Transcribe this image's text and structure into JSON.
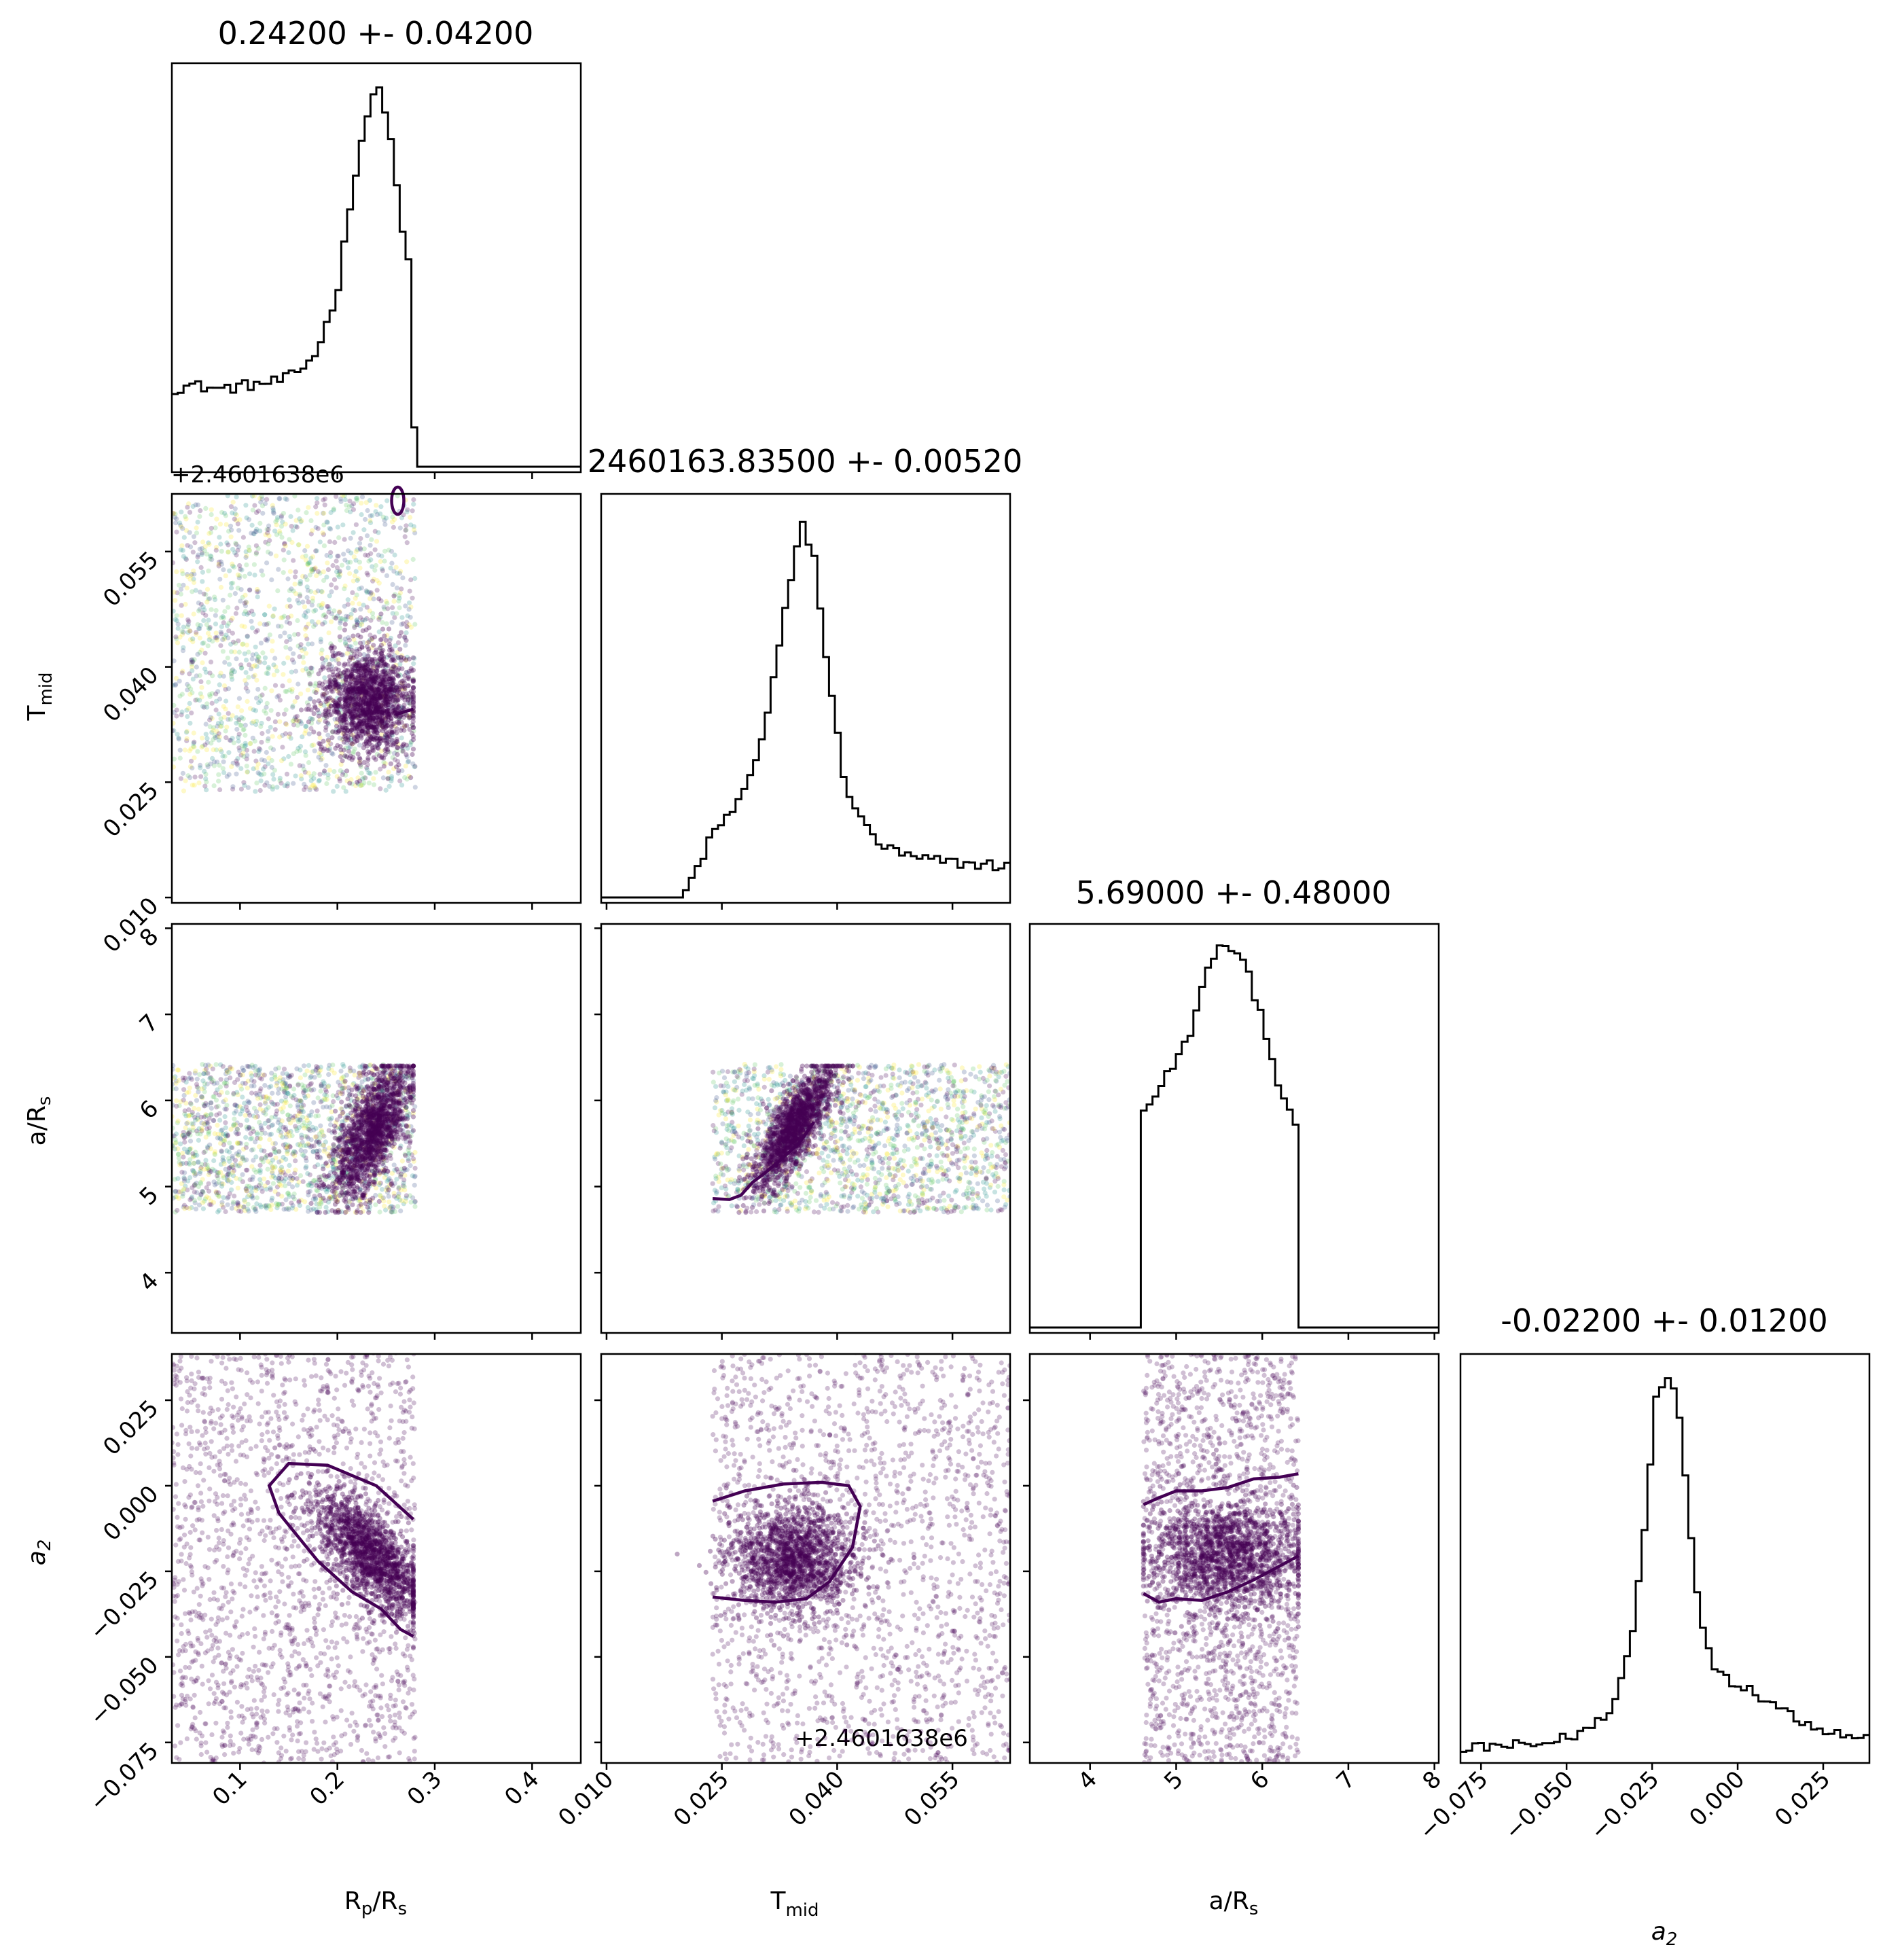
{
  "chart_data": {
    "type": "corner",
    "parameters": [
      {
        "key": "rp",
        "label_main": "R",
        "label_sub": "p",
        "label_tail": "/R",
        "label_tail_sub": "s",
        "title": "0.24200 +- 0.04200",
        "range": [
          0.03,
          0.45
        ],
        "ticks": [
          0.1,
          0.2,
          0.3,
          0.4
        ],
        "tick_labels": [
          "0.1",
          "0.2",
          "0.3",
          "0.4"
        ]
      },
      {
        "key": "tmid",
        "label_main": "T",
        "label_sub": "mid",
        "offset_text": "+2.4601638e6",
        "title": "2460163.83500 +- 0.00520",
        "range": [
          0.0093,
          0.0625
        ],
        "ticks": [
          0.01,
          0.025,
          0.04,
          0.055
        ],
        "tick_labels": [
          "0.010",
          "0.025",
          "0.040",
          "0.055"
        ]
      },
      {
        "key": "a",
        "label_main": "a/R",
        "label_sub": "s",
        "title": "5.69000 +- 0.48000",
        "range": [
          3.3,
          8.05
        ],
        "ticks": [
          4,
          5,
          6,
          7,
          8
        ],
        "tick_labels": [
          "4",
          "5",
          "6",
          "7",
          "8"
        ]
      },
      {
        "key": "a2",
        "label_main": "a",
        "label_sub": "2",
        "title": "-0.02200 +- 0.01200",
        "range": [
          -0.081,
          0.0385
        ],
        "ticks": [
          -0.075,
          -0.05,
          -0.025,
          0.0,
          0.025
        ],
        "tick_labels": [
          "−0.075",
          "−0.050",
          "−0.025",
          "0.000",
          "0.025"
        ]
      }
    ],
    "histograms": {
      "rp": {
        "x": [
          0.03,
          0.05,
          0.08,
          0.11,
          0.14,
          0.16,
          0.18,
          0.2,
          0.21,
          0.22,
          0.23,
          0.24,
          0.25,
          0.26,
          0.27,
          0.275,
          0.28,
          0.29,
          0.45
        ],
        "y": [
          0.2,
          0.21,
          0.2,
          0.21,
          0.22,
          0.24,
          0.3,
          0.45,
          0.62,
          0.78,
          0.9,
          0.98,
          0.92,
          0.75,
          0.55,
          0.5,
          0.0,
          0.0,
          0.0
        ]
      },
      "tmid": {
        "x": [
          0.0093,
          0.02,
          0.0238,
          0.025,
          0.027,
          0.029,
          0.031,
          0.0325,
          0.034,
          0.0355,
          0.037,
          0.039,
          0.041,
          0.043,
          0.046,
          0.05,
          0.055,
          0.0625
        ],
        "y": [
          0.0,
          0.0,
          0.16,
          0.19,
          0.24,
          0.32,
          0.48,
          0.65,
          0.82,
          0.96,
          0.88,
          0.55,
          0.3,
          0.2,
          0.13,
          0.1,
          0.09,
          0.08
        ]
      },
      "a": {
        "x": [
          3.3,
          4.6,
          4.62,
          4.8,
          5.0,
          5.2,
          5.4,
          5.6,
          5.8,
          6.0,
          6.2,
          6.4,
          6.45,
          8.05
        ],
        "y": [
          0.0,
          0.0,
          0.55,
          0.62,
          0.68,
          0.78,
          0.95,
          0.99,
          0.93,
          0.8,
          0.62,
          0.5,
          0.0,
          0.0
        ]
      },
      "a2": {
        "x": [
          -0.081,
          -0.07,
          -0.06,
          -0.05,
          -0.042,
          -0.036,
          -0.031,
          -0.027,
          -0.024,
          -0.021,
          -0.018,
          -0.015,
          -0.012,
          -0.008,
          -0.002,
          0.005,
          0.012,
          0.02,
          0.03,
          0.0385
        ],
        "y": [
          0.02,
          0.03,
          0.03,
          0.05,
          0.08,
          0.14,
          0.3,
          0.6,
          0.92,
          0.99,
          0.95,
          0.72,
          0.42,
          0.25,
          0.2,
          0.17,
          0.13,
          0.09,
          0.06,
          0.05
        ]
      }
    },
    "colors": {
      "dense": "#440154",
      "scatter_palette": [
        "#440154",
        "#3b528b",
        "#21918c",
        "#5ec962",
        "#fde725"
      ],
      "hist": "#000000"
    }
  }
}
